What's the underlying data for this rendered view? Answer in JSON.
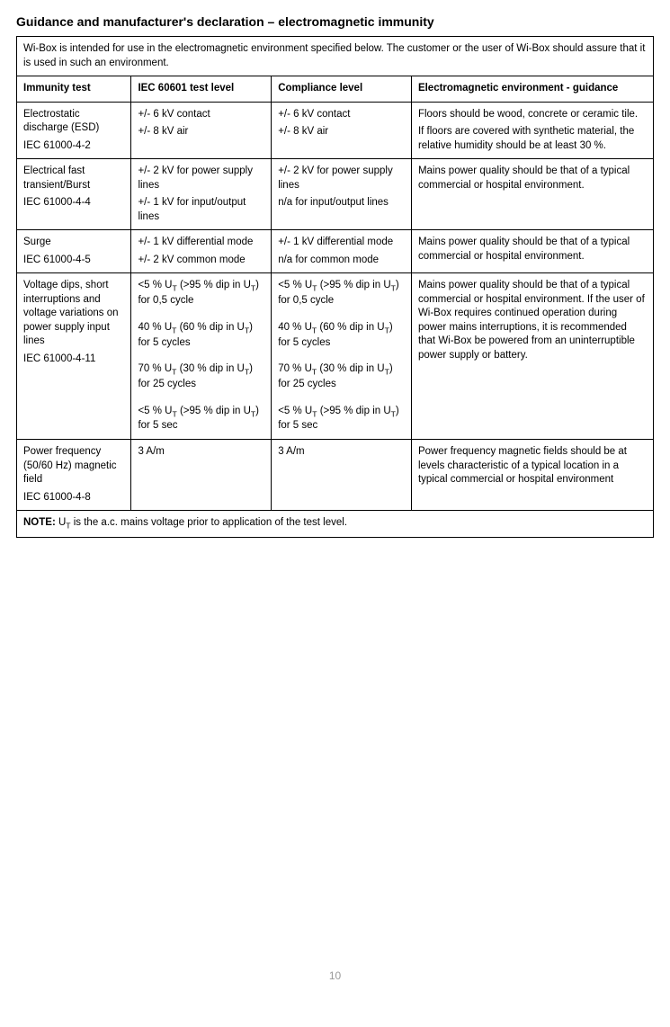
{
  "title": "Guidance and manufacturer's declaration – electromagnetic immunity",
  "intro": "Wi-Box is intended for use in the electromagnetic environment specified below. The customer or the user of Wi-Box should assure that it is used in such an environment.",
  "headers": {
    "c1": "Immunity test",
    "c2": "IEC 60601 test level",
    "c3": "Compliance level",
    "c4": "Electromagnetic environment - guidance"
  },
  "rows": [
    {
      "test": [
        "Electrostatic discharge (ESD)",
        "IEC 61000-4-2"
      ],
      "level": [
        "+/- 6 kV contact",
        "+/- 8 kV air"
      ],
      "compliance": [
        "+/- 6 kV contact",
        "+/- 8 kV air"
      ],
      "guidance": [
        "Floors should be wood, concrete or ceramic tile.",
        "If floors are covered with synthetic material, the relative humidity should be at least 30 %."
      ]
    },
    {
      "test": [
        "Electrical fast transient/Burst",
        "IEC 61000-4-4"
      ],
      "level": [
        "+/- 2 kV for power supply lines",
        "+/- 1 kV for input/output lines"
      ],
      "compliance": [
        "+/- 2 kV for power supply lines",
        "n/a for input/output lines"
      ],
      "guidance": [
        "Mains power quality should be that of a typical commercial or hospital environment."
      ]
    },
    {
      "test": [
        "Surge",
        "IEC 61000-4-5"
      ],
      "level": [
        "+/- 1 kV differential mode",
        "+/- 2 kV common mode"
      ],
      "compliance": [
        "+/- 1 kV differential mode",
        "n/a for common mode"
      ],
      "guidance": [
        "Mains power quality should be that of a typical commercial or hospital environment."
      ]
    },
    {
      "test": [
        "Voltage dips, short interruptions and voltage variations on power supply input lines",
        "IEC 61000-4-11"
      ],
      "level_blocks": [
        "<5 % U_T (>95 % dip in U_T) for 0,5 cycle",
        "40 % U_T (60 % dip in U_T) for 5 cycles",
        "70 % U_T (30 % dip in U_T) for 25 cycles",
        "<5 % U_T (>95 % dip in U_T) for 5 sec"
      ],
      "compliance_blocks": [
        "<5 % U_T (>95 % dip in U_T) for 0,5 cycle",
        "40 % U_T (60 % dip in U_T) for 5 cycles",
        "70 % U_T (30 % dip in U_T) for 25 cycles",
        "<5 % U_T (>95 % dip in U_T) for 5 sec"
      ],
      "guidance": [
        "Mains power quality should be that of a typical commercial or hospital environment. If the user of Wi-Box requires continued operation during power mains interruptions, it is recommended that Wi-Box be powered from an uninterruptible power supply or battery."
      ]
    },
    {
      "test": [
        "Power frequency (50/60 Hz) magnetic field",
        "IEC 61000-4-8"
      ],
      "level": [
        "3 A/m"
      ],
      "compliance": [
        "3 A/m"
      ],
      "guidance": [
        "Power frequency magnetic fields should be at levels characteristic of a typical location in a typical commercial or hospital environment"
      ]
    }
  ],
  "note_label": "NOTE:",
  "note_text": " U_T is the a.c. mains voltage prior to application of the test level.",
  "page_number": "10"
}
